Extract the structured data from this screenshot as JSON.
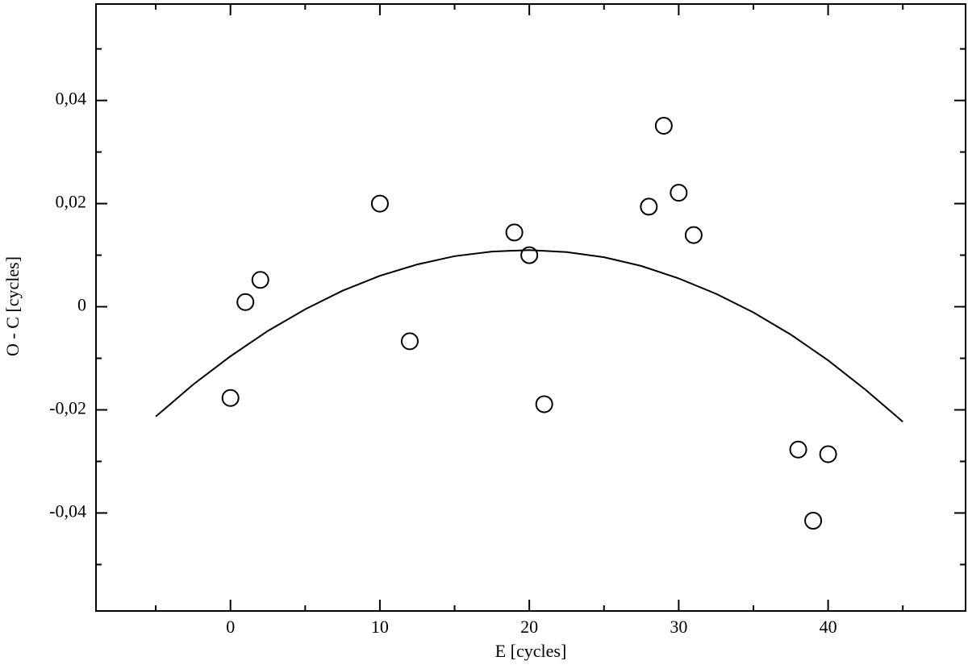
{
  "chart_data": {
    "type": "scatter",
    "x_label": "E [cycles]",
    "y_label": "O - C [cycles]",
    "xlim": [
      -9,
      49.2
    ],
    "ylim": [
      -0.059,
      0.0587
    ],
    "xticks": [
      0,
      10,
      20,
      30,
      40
    ],
    "minor_xticks": [
      -5,
      5,
      15,
      25,
      35,
      45
    ],
    "yticks": [
      {
        "value": -0.04,
        "label": "-0,04"
      },
      {
        "value": -0.02,
        "label": "-0,02"
      },
      {
        "value": 0,
        "label": "0"
      },
      {
        "value": 0.02,
        "label": "0,02"
      },
      {
        "value": 0.04,
        "label": "0,04"
      }
    ],
    "minor_yticks": [
      -0.05,
      -0.03,
      -0.01,
      0.01,
      0.03,
      0.05
    ],
    "series": [
      {
        "type": "scatter",
        "color": "#000000",
        "x": [
          0,
          1,
          2,
          10,
          12,
          19,
          20,
          21,
          28,
          29,
          30,
          31,
          38,
          39,
          40
        ],
        "values": [
          -0.0177,
          0.0009,
          0.0052,
          0.02,
          -0.0067,
          0.0144,
          0.01,
          -0.0189,
          0.0194,
          0.0351,
          0.0221,
          0.0139,
          -0.0277,
          -0.0415,
          -0.0286
        ]
      },
      {
        "type": "line",
        "color": "#000000",
        "x": [
          -5,
          -2.5,
          0,
          2.5,
          5,
          7.5,
          10,
          12.5,
          15,
          17.5,
          20,
          22.5,
          25,
          27.5,
          30,
          32.5,
          35,
          37.5,
          40,
          42.5,
          45
        ],
        "values": [
          -0.0213,
          -0.0151,
          -0.0096,
          -0.0047,
          -0.0005,
          0.0031,
          0.006,
          0.0082,
          0.0098,
          0.0107,
          0.011,
          0.0106,
          0.0096,
          0.0079,
          0.0055,
          0.0025,
          -0.0011,
          -0.0054,
          -0.0104,
          -0.0161,
          -0.0223
        ]
      }
    ]
  }
}
